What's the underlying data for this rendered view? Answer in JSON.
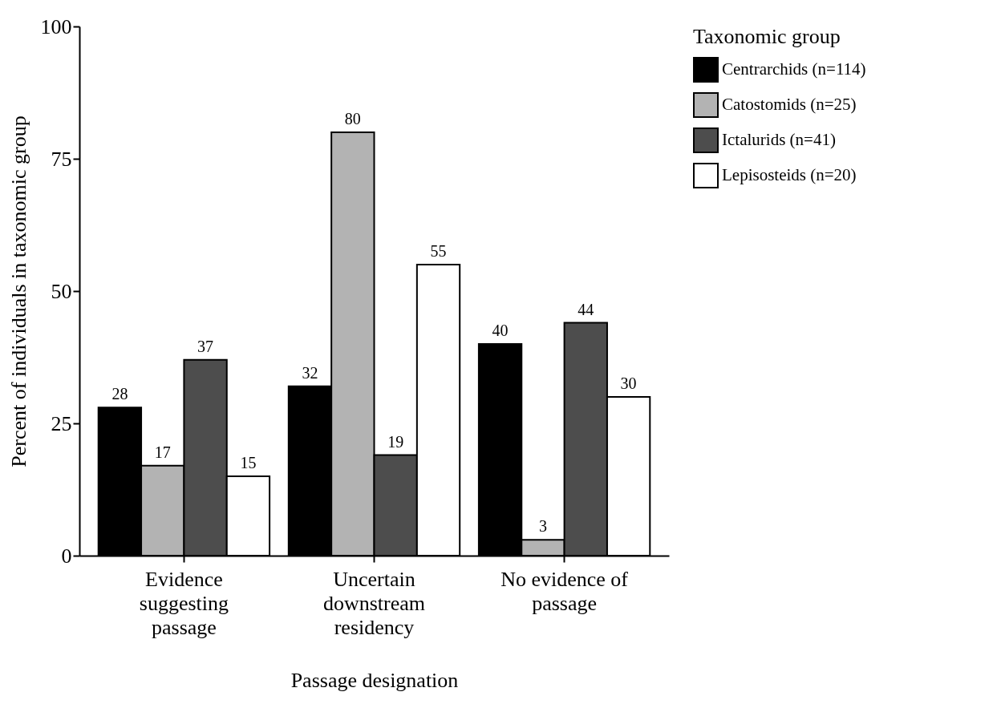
{
  "chart_data": {
    "type": "bar",
    "xlabel": "Passage designation",
    "ylabel": "Percent of individuals in taxonomic group",
    "legend_title": "Taxonomic group",
    "categories": [
      "Evidence suggesting passage",
      "Uncertain downstream residency",
      "No evidence of passage"
    ],
    "series": [
      {
        "name": "Centrarchids (n=114)",
        "color": "#000000",
        "values": [
          28,
          32,
          40
        ]
      },
      {
        "name": "Catostomids (n=25)",
        "color": "#b3b3b3",
        "values": [
          17,
          80,
          3
        ]
      },
      {
        "name": "Ictalurids (n=41)",
        "color": "#4d4d4d",
        "values": [
          37,
          19,
          44
        ]
      },
      {
        "name": "Lepisosteids (n=20)",
        "color": "#ffffff",
        "values": [
          15,
          55,
          30
        ]
      }
    ],
    "ylim": [
      0,
      100
    ],
    "yticks": [
      0,
      25,
      50,
      75,
      100
    ],
    "grid": false,
    "legend": "right",
    "data_labels": true
  }
}
